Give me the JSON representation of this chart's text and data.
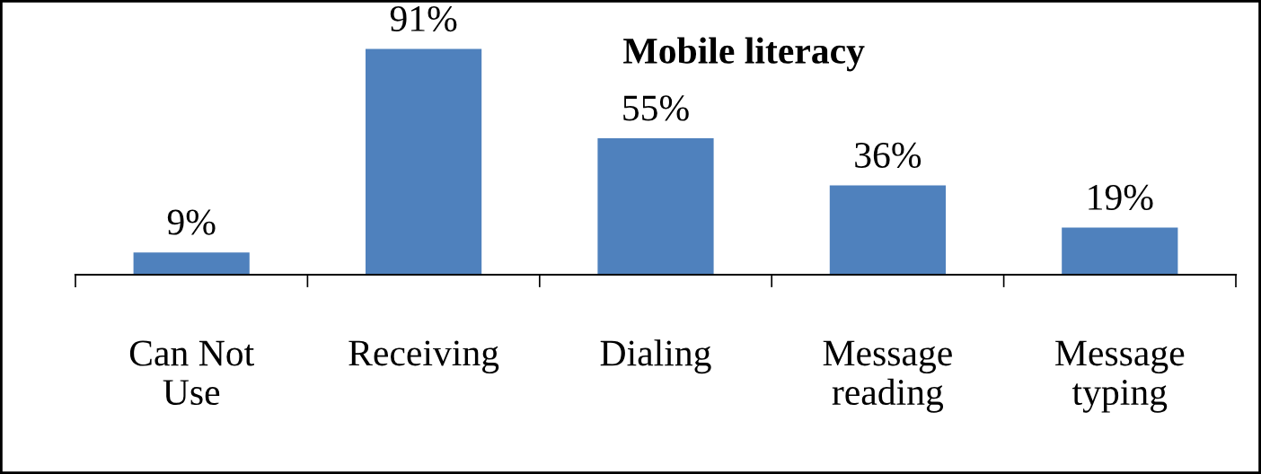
{
  "chart_data": {
    "type": "bar",
    "title": "Mobile literacy",
    "categories": [
      "Can Not\nUse",
      "Receiving",
      "Dialing",
      "Message\nreading",
      "Message\ntyping"
    ],
    "values": [
      9,
      91,
      55,
      36,
      19
    ],
    "value_labels": [
      "9%",
      "91%",
      "55%",
      "36%",
      "19%"
    ],
    "color": "#4f81bd",
    "grid": false,
    "legend": false
  }
}
